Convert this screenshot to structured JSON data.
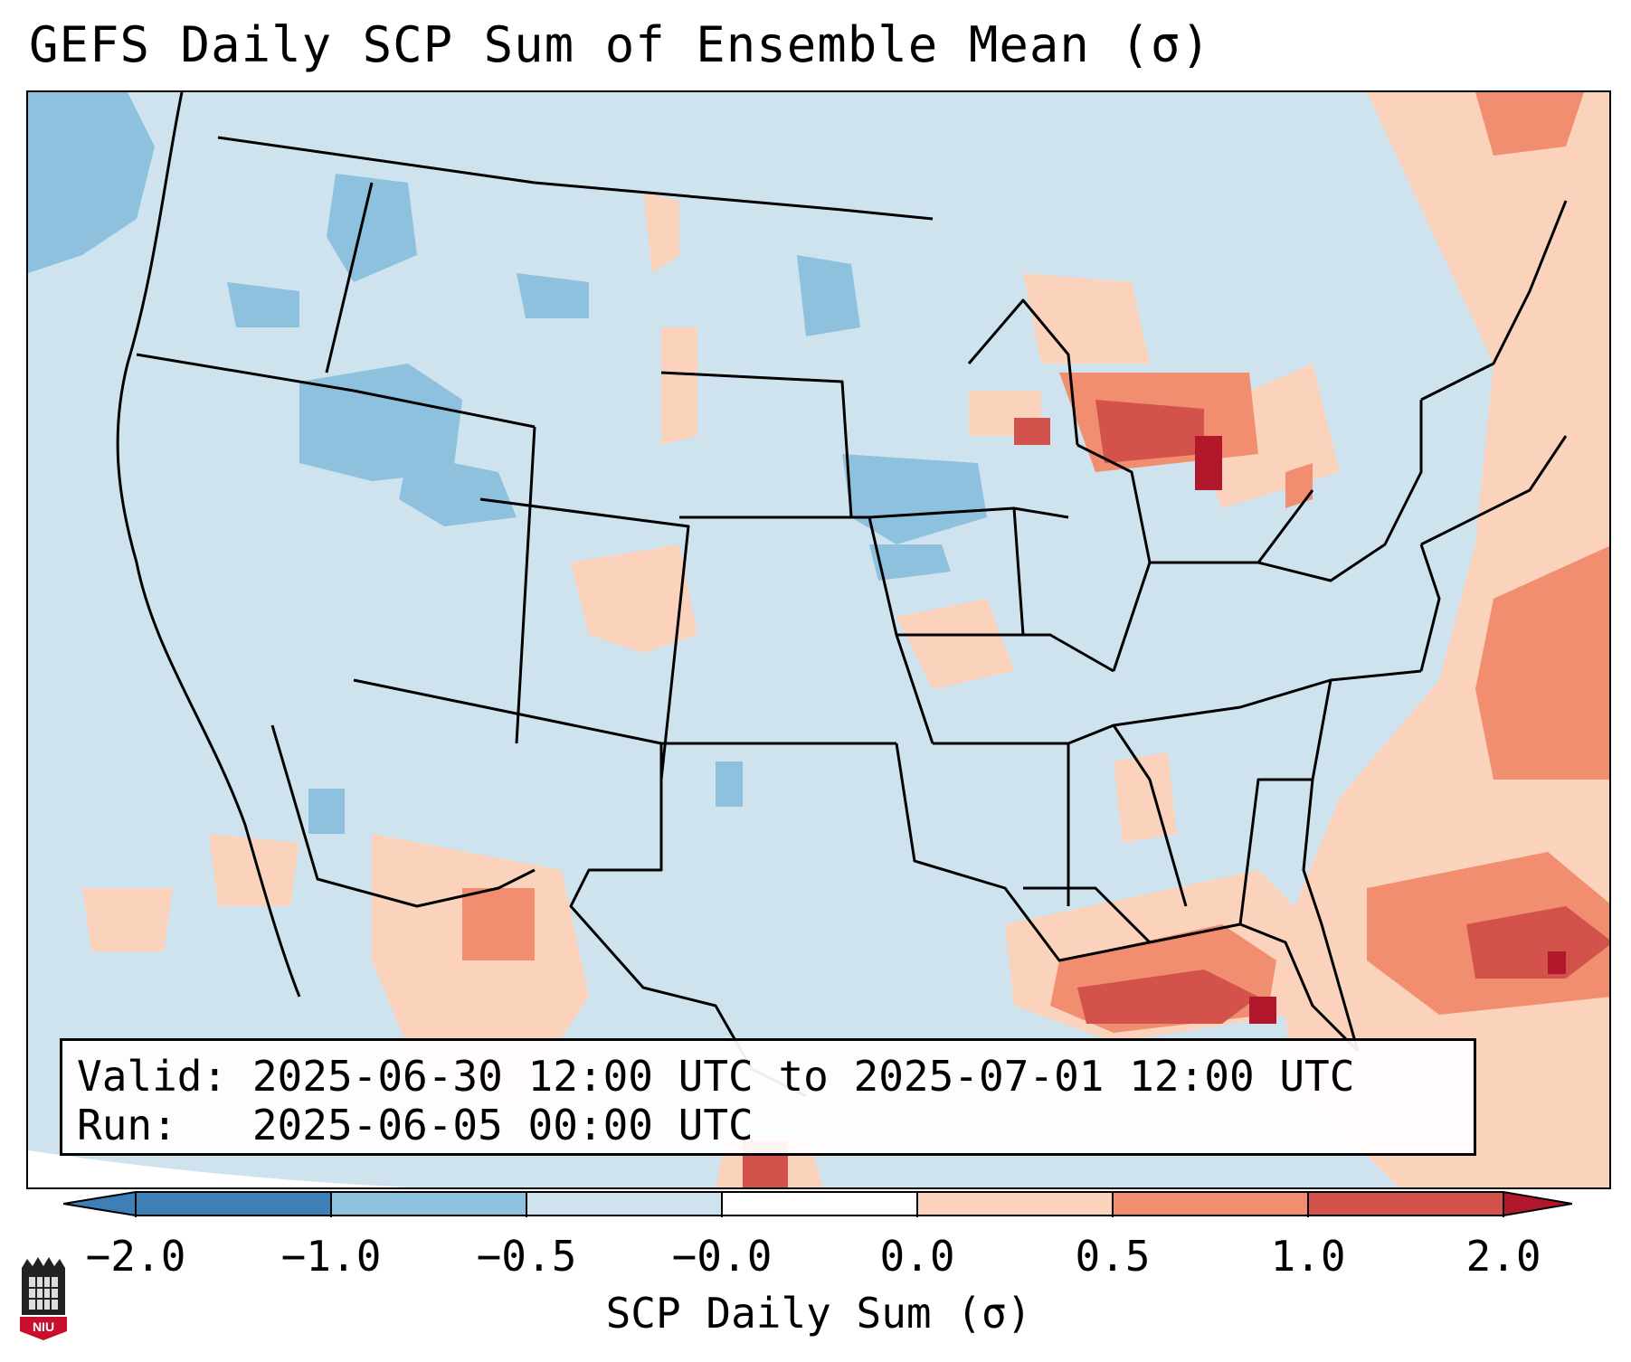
{
  "title": "GEFS Daily SCP Sum of Ensemble Mean (σ)",
  "info": {
    "valid_line": "Valid: 2025-06-30 12:00 UTC to 2025-07-01 12:00 UTC",
    "run_line": "Run:   2025-06-05 00:00 UTC"
  },
  "colorbar": {
    "label": "SCP Daily Sum (σ)",
    "ticks": [
      "−2.0",
      "−1.0",
      "−0.5",
      "−0.0",
      "0.0",
      "0.5",
      "1.0",
      "2.0"
    ],
    "colors": [
      "#3e7fb8",
      "#8ec1de",
      "#cfe3ef",
      "#ffffff",
      "#fbd3bd",
      "#f08e6f",
      "#d3524c",
      "#b2182b"
    ]
  },
  "map": {
    "region": "Continental United States",
    "background_color": "#cfe3ef"
  },
  "logo": {
    "name": "niu-logo",
    "text": "NIU"
  }
}
